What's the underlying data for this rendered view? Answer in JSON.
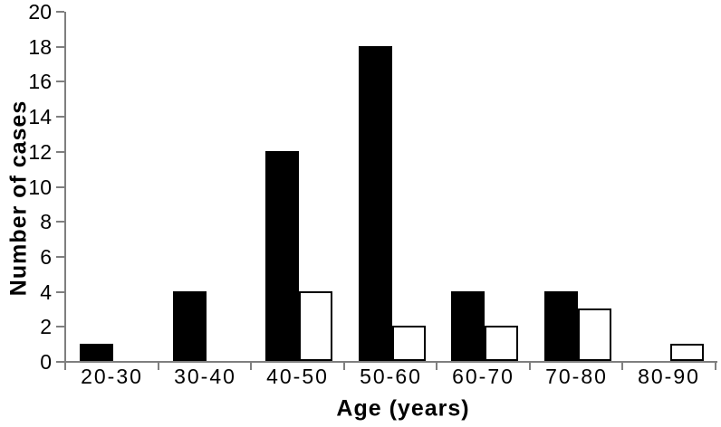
{
  "chart_data": {
    "type": "bar",
    "xlabel": "Age (years)",
    "ylabel": "Number of cases",
    "categories": [
      "20-30",
      "30-40",
      "40-50",
      "50-60",
      "60-70",
      "70-80",
      "80-90"
    ],
    "series": [
      {
        "name": "filled-black-bars",
        "color": "#000000",
        "values": [
          1,
          4,
          12,
          18,
          4,
          4,
          0
        ]
      },
      {
        "name": "open-white-bars",
        "color": "#ffffff",
        "border_color": "#000000",
        "values": [
          0,
          0,
          4,
          2,
          2,
          3,
          1
        ]
      }
    ],
    "ylim": [
      0,
      20
    ],
    "yticks": [
      0,
      2,
      4,
      6,
      8,
      10,
      12,
      14,
      16,
      18,
      20
    ],
    "grid": false,
    "legend": "none",
    "axis_color": "#7f7f7f",
    "text_color": "#000000",
    "background": "#ffffff"
  }
}
